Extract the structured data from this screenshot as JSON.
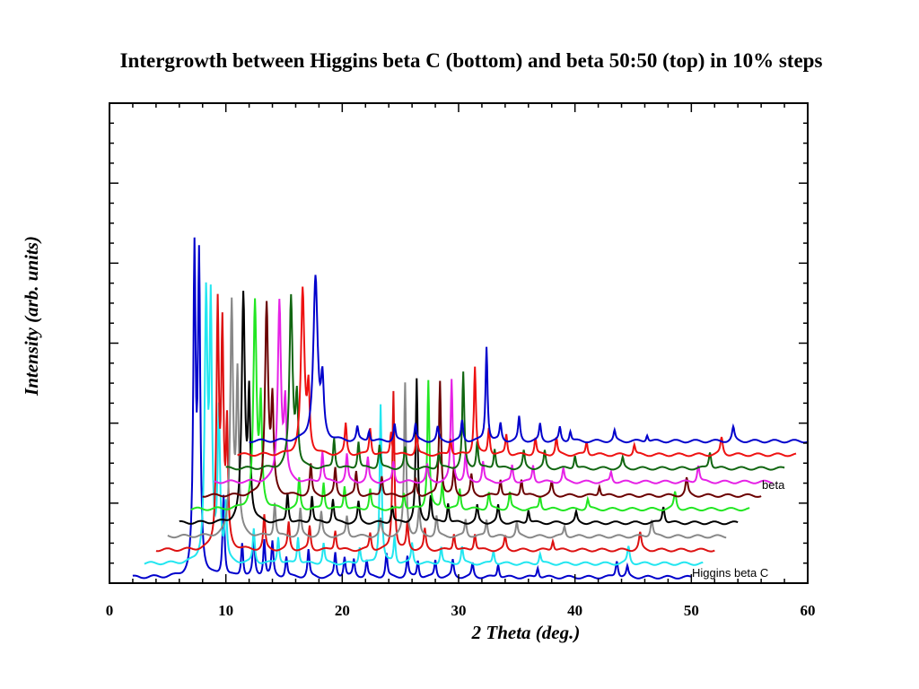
{
  "chart_data": {
    "type": "line",
    "title": "Intergrowth between Higgins beta C (bottom) and beta 50:50 (top) in 10% steps",
    "xlabel": "2 Theta (deg.)",
    "ylabel": "Intensity (arb. units)",
    "xlim": [
      0,
      60
    ],
    "x_ticks": [
      "0",
      "10",
      "20",
      "30",
      "40",
      "50",
      "60"
    ],
    "y_ticks": [],
    "grid": false,
    "legend": "none",
    "offset_step_x_deg": 2,
    "offset_step_y_units": 0.04,
    "series_labels": {
      "bottom": "Higgins beta C",
      "top": "beta"
    },
    "series": [
      {
        "color": "#0000cc",
        "range": [
          2,
          50
        ],
        "base": 0,
        "peaks": [
          [
            7.3,
            0.92,
            0.12
          ],
          [
            7.7,
            0.9,
            0.12
          ],
          [
            9.8,
            0.24,
            0.1
          ],
          [
            11.4,
            0.1,
            0.1
          ],
          [
            12.4,
            0.12,
            0.1
          ],
          [
            13.3,
            0.11,
            0.1
          ],
          [
            14.0,
            0.1,
            0.1
          ],
          [
            15.2,
            0.06,
            0.1
          ],
          [
            17.1,
            0.08,
            0.1
          ],
          [
            19.4,
            0.07,
            0.1
          ],
          [
            20.2,
            0.06,
            0.1
          ],
          [
            21.0,
            0.05,
            0.1
          ],
          [
            22.1,
            0.05,
            0.1
          ],
          [
            23.8,
            0.07,
            0.1
          ],
          [
            25.6,
            0.06,
            0.1
          ],
          [
            26.5,
            0.05,
            0.1
          ],
          [
            28.0,
            0.05,
            0.1
          ],
          [
            29.5,
            0.05,
            0.1
          ],
          [
            31.2,
            0.04,
            0.1
          ],
          [
            33.4,
            0.04,
            0.1
          ],
          [
            36.8,
            0.03,
            0.1
          ],
          [
            43.6,
            0.05,
            0.12
          ],
          [
            44.5,
            0.03,
            0.1
          ]
        ]
      },
      {
        "color": "#22e6f0",
        "range": [
          3,
          51
        ],
        "base": 0.04,
        "peaks": [
          [
            8.3,
            0.76,
            0.14
          ],
          [
            8.7,
            0.72,
            0.12
          ],
          [
            9.4,
            0.44,
            0.12
          ],
          [
            10.0,
            0.16,
            0.1
          ],
          [
            12.4,
            0.1,
            0.1
          ],
          [
            14.5,
            0.08,
            0.1
          ],
          [
            16.2,
            0.08,
            0.1
          ],
          [
            18.4,
            0.06,
            0.1
          ],
          [
            21.5,
            0.05,
            0.1
          ],
          [
            23.3,
            0.47,
            0.1
          ],
          [
            24.5,
            0.08,
            0.1
          ],
          [
            26.0,
            0.06,
            0.1
          ],
          [
            28.5,
            0.05,
            0.1
          ],
          [
            30.3,
            0.05,
            0.1
          ],
          [
            33.0,
            0.04,
            0.1
          ],
          [
            37.0,
            0.03,
            0.1
          ],
          [
            44.6,
            0.05,
            0.12
          ]
        ]
      },
      {
        "color": "#dd1111",
        "range": [
          4,
          52
        ],
        "base": 0.08,
        "peaks": [
          [
            9.3,
            0.7,
            0.12
          ],
          [
            9.7,
            0.62,
            0.12
          ],
          [
            10.1,
            0.34,
            0.1
          ],
          [
            13.3,
            0.1,
            0.1
          ],
          [
            15.4,
            0.08,
            0.1
          ],
          [
            17.2,
            0.07,
            0.1
          ],
          [
            19.4,
            0.06,
            0.1
          ],
          [
            22.4,
            0.05,
            0.1
          ],
          [
            24.4,
            0.47,
            0.1
          ],
          [
            25.6,
            0.08,
            0.1
          ],
          [
            27.1,
            0.06,
            0.1
          ],
          [
            29.6,
            0.05,
            0.1
          ],
          [
            31.4,
            0.05,
            0.1
          ],
          [
            34.0,
            0.04,
            0.1
          ],
          [
            38.1,
            0.03,
            0.1
          ],
          [
            45.6,
            0.05,
            0.12
          ]
        ]
      },
      {
        "color": "#888888",
        "range": [
          5,
          53
        ],
        "base": 0.12,
        "peaks": [
          [
            10.5,
            0.68,
            0.14
          ],
          [
            11.0,
            0.46,
            0.12
          ],
          [
            14.2,
            0.1,
            0.1
          ],
          [
            16.4,
            0.08,
            0.1
          ],
          [
            18.2,
            0.07,
            0.1
          ],
          [
            20.4,
            0.06,
            0.1
          ],
          [
            23.3,
            0.05,
            0.1
          ],
          [
            25.4,
            0.45,
            0.1
          ],
          [
            26.6,
            0.08,
            0.1
          ],
          [
            28.1,
            0.06,
            0.1
          ],
          [
            30.6,
            0.05,
            0.1
          ],
          [
            32.4,
            0.05,
            0.1
          ],
          [
            35.0,
            0.04,
            0.1
          ],
          [
            39.1,
            0.03,
            0.1
          ],
          [
            46.6,
            0.05,
            0.12
          ]
        ]
      },
      {
        "color": "#000000",
        "range": [
          6,
          54
        ],
        "base": 0.16,
        "peaks": [
          [
            11.5,
            0.66,
            0.16
          ],
          [
            12.0,
            0.36,
            0.12
          ],
          [
            15.3,
            0.09,
            0.1
          ],
          [
            17.4,
            0.08,
            0.1
          ],
          [
            19.2,
            0.07,
            0.1
          ],
          [
            21.4,
            0.06,
            0.1
          ],
          [
            24.3,
            0.05,
            0.1
          ],
          [
            26.4,
            0.42,
            0.1
          ],
          [
            27.6,
            0.08,
            0.1
          ],
          [
            29.1,
            0.06,
            0.1
          ],
          [
            31.6,
            0.05,
            0.1
          ],
          [
            33.4,
            0.05,
            0.1
          ],
          [
            36.0,
            0.04,
            0.1
          ],
          [
            40.1,
            0.03,
            0.1
          ],
          [
            47.6,
            0.05,
            0.12
          ]
        ]
      },
      {
        "color": "#22e622",
        "range": [
          7,
          55
        ],
        "base": 0.2,
        "peaks": [
          [
            12.5,
            0.6,
            0.16
          ],
          [
            13.0,
            0.3,
            0.12
          ],
          [
            16.3,
            0.09,
            0.1
          ],
          [
            18.4,
            0.08,
            0.1
          ],
          [
            20.2,
            0.07,
            0.1
          ],
          [
            22.4,
            0.06,
            0.1
          ],
          [
            25.3,
            0.05,
            0.1
          ],
          [
            27.4,
            0.38,
            0.1
          ],
          [
            28.6,
            0.08,
            0.1
          ],
          [
            30.1,
            0.06,
            0.1
          ],
          [
            32.6,
            0.05,
            0.1
          ],
          [
            34.4,
            0.05,
            0.1
          ],
          [
            37.0,
            0.04,
            0.1
          ],
          [
            41.1,
            0.03,
            0.1
          ],
          [
            48.6,
            0.05,
            0.12
          ]
        ]
      },
      {
        "color": "#6b0000",
        "range": [
          8,
          56
        ],
        "base": 0.24,
        "peaks": [
          [
            13.5,
            0.56,
            0.16
          ],
          [
            14.0,
            0.26,
            0.12
          ],
          [
            17.3,
            0.09,
            0.1
          ],
          [
            19.4,
            0.08,
            0.1
          ],
          [
            21.2,
            0.07,
            0.1
          ],
          [
            23.4,
            0.06,
            0.1
          ],
          [
            26.3,
            0.05,
            0.1
          ],
          [
            28.4,
            0.34,
            0.1
          ],
          [
            29.6,
            0.08,
            0.1
          ],
          [
            31.1,
            0.06,
            0.1
          ],
          [
            33.6,
            0.05,
            0.1
          ],
          [
            35.4,
            0.05,
            0.1
          ],
          [
            38.0,
            0.04,
            0.1
          ],
          [
            42.1,
            0.03,
            0.1
          ],
          [
            49.6,
            0.05,
            0.12
          ]
        ]
      },
      {
        "color": "#e622e6",
        "range": [
          9,
          57
        ],
        "base": 0.28,
        "peaks": [
          [
            14.6,
            0.53,
            0.16
          ],
          [
            15.1,
            0.22,
            0.12
          ],
          [
            18.3,
            0.09,
            0.1
          ],
          [
            20.4,
            0.08,
            0.1
          ],
          [
            22.2,
            0.07,
            0.1
          ],
          [
            24.4,
            0.06,
            0.1
          ],
          [
            27.3,
            0.05,
            0.1
          ],
          [
            29.4,
            0.3,
            0.1
          ],
          [
            30.6,
            0.08,
            0.1
          ],
          [
            32.1,
            0.06,
            0.1
          ],
          [
            34.6,
            0.05,
            0.1
          ],
          [
            36.4,
            0.05,
            0.1
          ],
          [
            39.0,
            0.04,
            0.1
          ],
          [
            43.1,
            0.03,
            0.1
          ],
          [
            50.6,
            0.05,
            0.12
          ]
        ]
      },
      {
        "color": "#116611",
        "range": [
          10,
          58
        ],
        "base": 0.32,
        "peaks": [
          [
            15.6,
            0.5,
            0.16
          ],
          [
            16.1,
            0.2,
            0.12
          ],
          [
            19.3,
            0.09,
            0.1
          ],
          [
            21.4,
            0.08,
            0.1
          ],
          [
            23.2,
            0.07,
            0.1
          ],
          [
            25.4,
            0.06,
            0.1
          ],
          [
            28.3,
            0.05,
            0.1
          ],
          [
            30.4,
            0.28,
            0.1
          ],
          [
            31.6,
            0.08,
            0.1
          ],
          [
            33.1,
            0.06,
            0.1
          ],
          [
            35.6,
            0.05,
            0.1
          ],
          [
            37.4,
            0.05,
            0.1
          ],
          [
            40.0,
            0.04,
            0.1
          ],
          [
            44.1,
            0.03,
            0.1
          ],
          [
            51.6,
            0.05,
            0.12
          ]
        ]
      },
      {
        "color": "#ee1111",
        "range": [
          11,
          59
        ],
        "base": 0.36,
        "peaks": [
          [
            16.6,
            0.48,
            0.18
          ],
          [
            17.1,
            0.18,
            0.12
          ],
          [
            20.3,
            0.09,
            0.1
          ],
          [
            22.4,
            0.08,
            0.1
          ],
          [
            24.2,
            0.07,
            0.1
          ],
          [
            26.4,
            0.06,
            0.1
          ],
          [
            29.3,
            0.05,
            0.1
          ],
          [
            31.4,
            0.26,
            0.1
          ],
          [
            32.6,
            0.08,
            0.1
          ],
          [
            34.1,
            0.06,
            0.1
          ],
          [
            36.6,
            0.05,
            0.1
          ],
          [
            38.4,
            0.05,
            0.1
          ],
          [
            41.0,
            0.04,
            0.1
          ],
          [
            45.1,
            0.03,
            0.1
          ],
          [
            52.6,
            0.05,
            0.12
          ]
        ]
      },
      {
        "color": "#0000cc",
        "range": [
          12,
          60
        ],
        "base": 0.4,
        "peaks": [
          [
            17.7,
            0.48,
            0.22
          ],
          [
            18.3,
            0.16,
            0.14
          ],
          [
            21.3,
            0.04,
            0.1
          ],
          [
            22.3,
            0.03,
            0.1
          ],
          [
            24.5,
            0.05,
            0.1
          ],
          [
            26.3,
            0.05,
            0.1
          ],
          [
            28.2,
            0.04,
            0.1
          ],
          [
            30.3,
            0.06,
            0.1
          ],
          [
            32.4,
            0.28,
            0.1
          ],
          [
            33.6,
            0.05,
            0.1
          ],
          [
            35.2,
            0.07,
            0.1
          ],
          [
            37.0,
            0.05,
            0.1
          ],
          [
            38.7,
            0.04,
            0.1
          ],
          [
            39.6,
            0.03,
            0.1
          ],
          [
            43.4,
            0.03,
            0.1
          ],
          [
            46.2,
            0.02,
            0.1
          ],
          [
            53.6,
            0.04,
            0.12
          ]
        ]
      }
    ]
  }
}
